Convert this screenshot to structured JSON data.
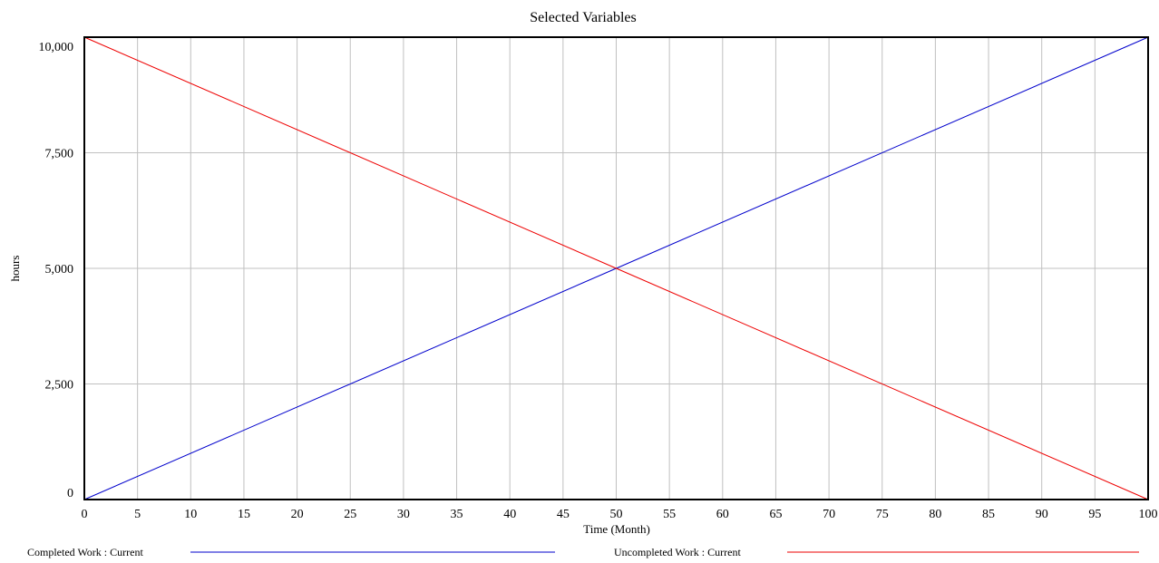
{
  "chart_data": {
    "type": "line",
    "title": "Selected Variables",
    "xlabel": "Time (Month)",
    "ylabel": "hours",
    "xlim": [
      0,
      100
    ],
    "ylim": [
      0,
      10000
    ],
    "x_ticks": [
      0,
      5,
      10,
      15,
      20,
      25,
      30,
      35,
      40,
      45,
      50,
      55,
      60,
      65,
      70,
      75,
      80,
      85,
      90,
      95,
      100
    ],
    "x_tick_labels": [
      "0",
      "5",
      "10",
      "15",
      "20",
      "25",
      "30",
      "35",
      "40",
      "45",
      "50",
      "55",
      "60",
      "65",
      "70",
      "75",
      "80",
      "85",
      "90",
      "95",
      "100"
    ],
    "y_ticks": [
      0,
      2500,
      5000,
      7500,
      10000
    ],
    "y_tick_labels": [
      "0",
      "2,500",
      "5,000",
      "7,500",
      "10,000"
    ],
    "grid": true,
    "legend_position": "bottom",
    "series": [
      {
        "name": "Completed Work : Current",
        "color": "#0000cc",
        "x": [
          0,
          50,
          100
        ],
        "y": [
          0,
          5000,
          10000
        ]
      },
      {
        "name": "Uncompleted Work : Current",
        "color": "#ee0000",
        "x": [
          0,
          50,
          100
        ],
        "y": [
          10000,
          5000,
          0
        ]
      }
    ]
  }
}
